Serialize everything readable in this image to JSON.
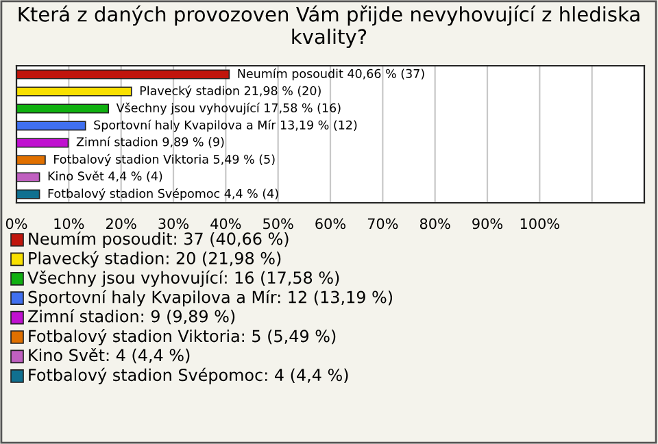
{
  "chart_data": {
    "type": "bar",
    "orientation": "horizontal",
    "title": "Která z daných provozoven Vám přijde nevyhovující z hlediska kvality?",
    "categories": [
      "Neumím posoudit",
      "Plavecký stadion",
      "Všechny jsou vyhovující",
      "Sportovní haly Kvapilova a Mír",
      "Zimní stadion",
      "Fotbalový stadion Viktoria",
      "Kino Svět",
      "Fotbalový stadion Svépomoc"
    ],
    "values": [
      40.66,
      21.98,
      17.58,
      13.19,
      9.89,
      5.49,
      4.4,
      4.4
    ],
    "value_labels": [
      "40,66 % (37)",
      "21,98 % (20)",
      "17,58 % (16)",
      "13,19 % (12)",
      "9,89 % (9)",
      "5,49 % (5)",
      "4,4 % (4)",
      "4,4 % (4)"
    ],
    "colors": [
      "#c0150c",
      "#f8e000",
      "#10b010",
      "#4070f0",
      "#c010d0",
      "#e07000",
      "#c060c0",
      "#107090"
    ],
    "xlim": [
      0,
      120
    ],
    "xticks": [
      {
        "value": 0,
        "label": "0%"
      },
      {
        "value": 10,
        "label": "10%"
      },
      {
        "value": 20,
        "label": "20%"
      },
      {
        "value": 30,
        "label": "30%"
      },
      {
        "value": 40,
        "label": "40%"
      },
      {
        "value": 50,
        "label": "50%"
      },
      {
        "value": 60,
        "label": "60%"
      },
      {
        "value": 70,
        "label": "70%"
      },
      {
        "value": 80,
        "label": "80%"
      },
      {
        "value": 90,
        "label": "90%"
      },
      {
        "value": 100,
        "label": "100%"
      },
      {
        "value": 110,
        "label": null
      }
    ],
    "grid": "x",
    "annotations": [
      "Neumím posoudit: 37 (40,66 %)",
      "Plavecký stadion: 20 (21,98 %)",
      "Všechny jsou vyhovující: 16 (17,58 %)",
      "Sportovní haly Kvapilova a Mír: 12 (13,19 %)",
      "Zimní stadion: 9 (9,89 %)",
      "Fotbalový stadion Viktoria: 5 (5,49 %)",
      "Kino Svět: 4 (4,4 %)",
      "Fotbalový stadion Svépomoc: 4 (4,4 %)"
    ]
  }
}
